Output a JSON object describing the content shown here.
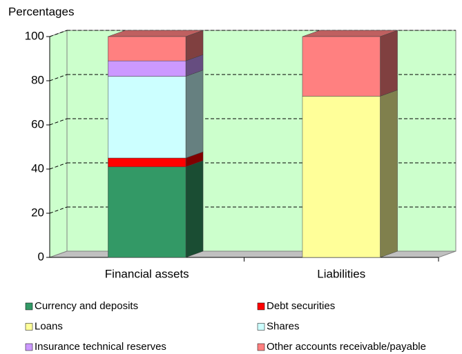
{
  "chart_data": {
    "type": "bar",
    "stacked": true,
    "three_d": true,
    "y_label": "Percentages",
    "categories": [
      "Financial assets",
      "Liabilities"
    ],
    "series": [
      {
        "name": "Currency and deposits",
        "color": "#339966",
        "values": [
          41,
          null
        ]
      },
      {
        "name": "Debt securities",
        "color": "#ff0000",
        "values": [
          4,
          null
        ]
      },
      {
        "name": "Loans",
        "color": "#ffff99",
        "values": [
          null,
          73
        ]
      },
      {
        "name": "Shares",
        "color": "#ccffff",
        "values": [
          37,
          null
        ]
      },
      {
        "name": "Insurance technical reserves",
        "color": "#cc99ff",
        "values": [
          7,
          null
        ]
      },
      {
        "name": "Other accounts receivable/payable",
        "color": "#ff8080",
        "values": [
          11,
          27
        ]
      }
    ],
    "ylim": [
      0,
      100
    ],
    "yticks": [
      0,
      20,
      40,
      60,
      80,
      100
    ],
    "grid": true,
    "plot_color": "#ccffcc",
    "legend": "bottom"
  }
}
